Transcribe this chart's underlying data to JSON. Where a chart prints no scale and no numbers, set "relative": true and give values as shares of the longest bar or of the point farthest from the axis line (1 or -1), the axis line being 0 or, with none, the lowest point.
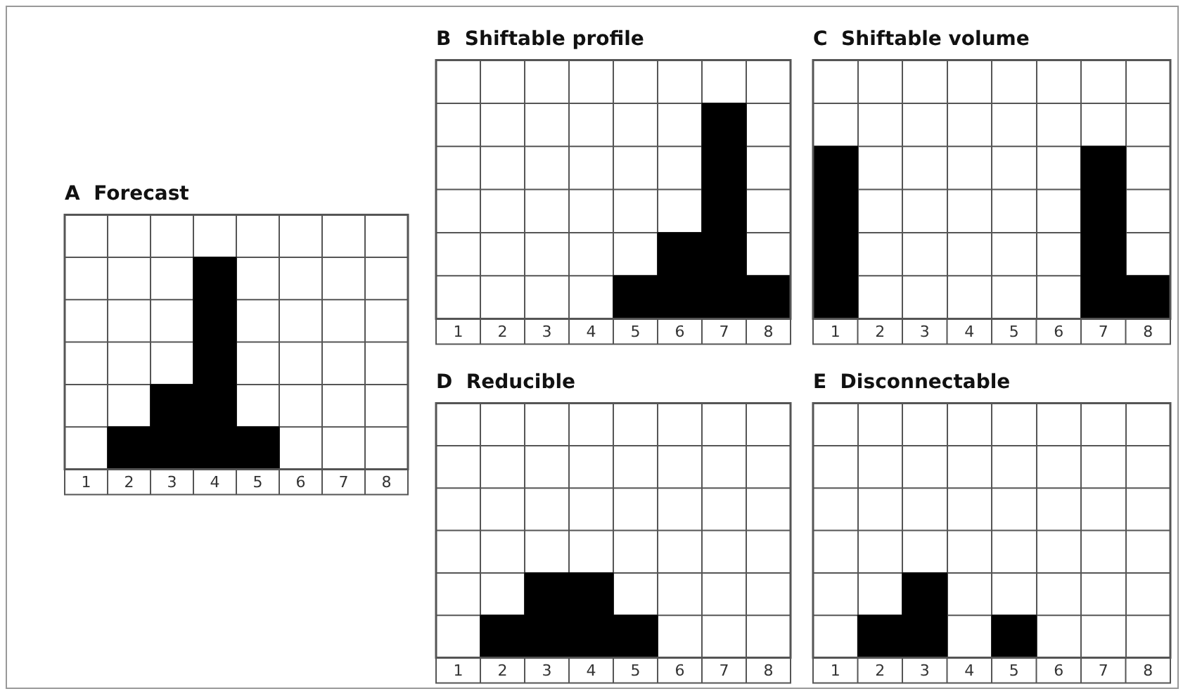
{
  "chart_data": [
    {
      "type": "bar",
      "title": "A  Forecast",
      "categories": [
        "1",
        "2",
        "3",
        "4",
        "5",
        "6",
        "7",
        "8"
      ],
      "values": [
        0,
        0.2,
        0.4,
        1,
        0.2,
        0,
        0,
        0
      ],
      "color": "#000000",
      "relative": true,
      "grid": true,
      "legend": false
    },
    {
      "type": "bar",
      "title": "B  Shiftable profile",
      "categories": [
        "1",
        "2",
        "3",
        "4",
        "5",
        "6",
        "7",
        "8"
      ],
      "values": [
        0,
        0,
        0,
        0,
        0.2,
        0.4,
        1,
        0.2
      ],
      "color": "#000000",
      "relative": true,
      "grid": true,
      "legend": false
    },
    {
      "type": "bar",
      "title": "C  Shiftable volume",
      "categories": [
        "1",
        "2",
        "3",
        "4",
        "5",
        "6",
        "7",
        "8"
      ],
      "values": [
        1,
        0,
        0,
        0,
        0,
        0,
        1,
        0.25
      ],
      "color": "#000000",
      "relative": true,
      "grid": true,
      "legend": false
    },
    {
      "type": "bar",
      "title": "D  Reducible",
      "categories": [
        "1",
        "2",
        "3",
        "4",
        "5",
        "6",
        "7",
        "8"
      ],
      "values": [
        0,
        0.5,
        1,
        1,
        0.5,
        0,
        0,
        0
      ],
      "color": "#000000",
      "relative": true,
      "grid": true,
      "legend": false
    },
    {
      "type": "bar",
      "title": "E  Disconnectable",
      "categories": [
        "1",
        "2",
        "3",
        "4",
        "5",
        "6",
        "7",
        "8"
      ],
      "values": [
        0,
        0.5,
        1,
        0,
        0.5,
        0,
        0,
        0
      ],
      "color": "#000000",
      "relative": true,
      "grid": true,
      "legend": false
    }
  ]
}
